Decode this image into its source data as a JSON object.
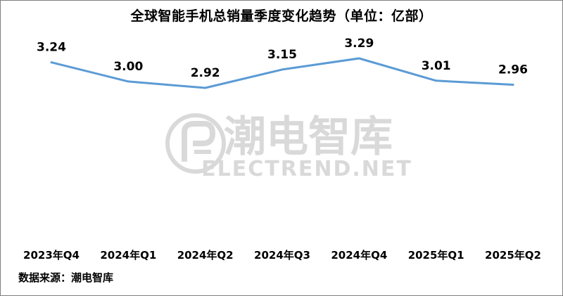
{
  "title": "全球智能手机总销量季度变化趋势（单位：亿部）",
  "source": "数据来源：潮电智库",
  "watermark": {
    "cn": "潮电智库",
    "en": "ELECTREND.NET"
  },
  "colors": {
    "line": "#5b9bd5",
    "watermark": "#d9d9d9"
  },
  "chart_data": {
    "type": "line",
    "title": "全球智能手机总销量季度变化趋势（单位：亿部）",
    "categories": [
      "2023年Q4",
      "2024年Q1",
      "2024年Q2",
      "2024年Q3",
      "2024年Q4",
      "2025年Q1",
      "2025年Q2"
    ],
    "series": [
      {
        "values": [
          3.24,
          3.0,
          2.92,
          3.15,
          3.29,
          3.01,
          2.96
        ]
      }
    ],
    "data_labels": [
      "3.24",
      "3.00",
      "2.92",
      "3.15",
      "3.29",
      "3.01",
      "2.96"
    ],
    "xlabel": "",
    "ylabel": "",
    "grid": false,
    "legend": "none"
  }
}
